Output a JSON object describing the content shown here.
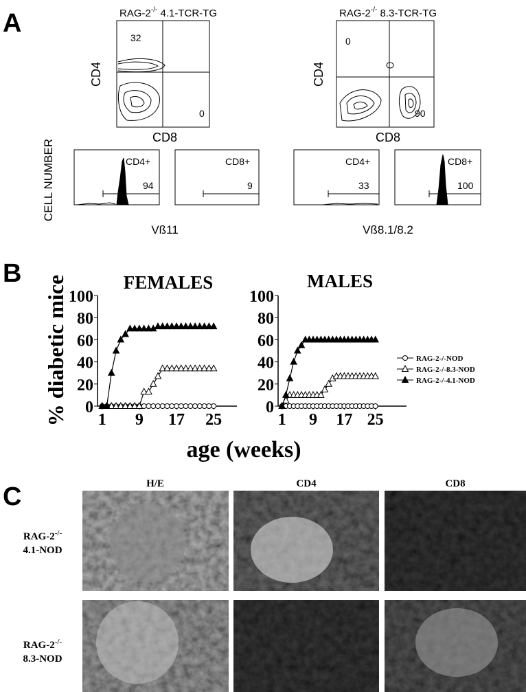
{
  "panel_a": {
    "label": "A",
    "left": {
      "title": {
        "prefix": "RAG-2",
        "sup": "-/-",
        "suffix": " 4.1-TCR-TG"
      },
      "contour": {
        "ylabel": "CD4",
        "xlabel": "CD8",
        "q_upper_left": "32",
        "q_lower_right": "0"
      },
      "hist": [
        {
          "label": "CD4+",
          "value": "94"
        },
        {
          "label": "CD8+",
          "value": "9"
        }
      ],
      "hist_xlabel": "Vß11"
    },
    "right": {
      "title": {
        "prefix": "RAG-2",
        "sup": "-/-",
        "suffix": " 8.3-TCR-TG"
      },
      "contour": {
        "ylabel": "CD4",
        "xlabel": "CD8",
        "q_upper_left": "0",
        "q_lower_right": "90"
      },
      "hist": [
        {
          "label": "CD4+",
          "value": "33"
        },
        {
          "label": "CD8+",
          "value": "100"
        }
      ],
      "hist_xlabel": "Vß8.1/8.2"
    },
    "hist_ylabel": "CELL NUMBER"
  },
  "panel_b": {
    "label": "B",
    "ylabel": "% diabetic mice",
    "xlabel": "age (weeks)"
  },
  "chart_data": [
    {
      "type": "line",
      "title": "FEMALES",
      "x": [
        1,
        2,
        3,
        4,
        5,
        6,
        7,
        8,
        9,
        10,
        11,
        12,
        13,
        14,
        15,
        16,
        17,
        18,
        19,
        20,
        21,
        22,
        23,
        24,
        25
      ],
      "series": [
        {
          "name": "RAG-2-/-NOD",
          "color": "#000000",
          "marker": "circle",
          "filled": false,
          "values": [
            0,
            0,
            0,
            0,
            0,
            0,
            0,
            0,
            0,
            0,
            0,
            0,
            0,
            0,
            0,
            0,
            0,
            0,
            0,
            0,
            0,
            0,
            0,
            0,
            0
          ]
        },
        {
          "name": "RAG-2-/-8.3-NOD",
          "color": "#000000",
          "marker": "triangle",
          "filled": false,
          "values": [
            0,
            0,
            0,
            0,
            0,
            0,
            0,
            0,
            0,
            13,
            13,
            20,
            27,
            34,
            34,
            34,
            34,
            34,
            34,
            34,
            34,
            34,
            34,
            34,
            34
          ]
        },
        {
          "name": "RAG-2-/-4.1-NOD",
          "color": "#000000",
          "marker": "triangle",
          "filled": true,
          "values": [
            0,
            0,
            30,
            50,
            60,
            65,
            70,
            70,
            70,
            70,
            70,
            70,
            72,
            72,
            72,
            72,
            72,
            72,
            72,
            72,
            72,
            72,
            72,
            72,
            72
          ]
        }
      ],
      "xlim": [
        0,
        30
      ],
      "ylim": [
        0,
        100
      ],
      "xticks": [
        1,
        9,
        17,
        25
      ],
      "yticks": [
        0,
        20,
        40,
        60,
        80,
        100
      ]
    },
    {
      "type": "line",
      "title": "MALES",
      "x": [
        1,
        2,
        3,
        4,
        5,
        6,
        7,
        8,
        9,
        10,
        11,
        12,
        13,
        14,
        15,
        16,
        17,
        18,
        19,
        20,
        21,
        22,
        23,
        24,
        25
      ],
      "series": [
        {
          "color": "#000000",
          "marker": "circle",
          "filled": false,
          "values": [
            0,
            0,
            0,
            0,
            0,
            0,
            0,
            0,
            0,
            0,
            0,
            0,
            0,
            0,
            0,
            0,
            0,
            0,
            0,
            0,
            0,
            0,
            0,
            0,
            0
          ]
        },
        {
          "color": "#000000",
          "marker": "triangle",
          "filled": false,
          "values": [
            0,
            5,
            10,
            10,
            10,
            10,
            10,
            10,
            10,
            10,
            10,
            15,
            20,
            25,
            27,
            27,
            27,
            27,
            27,
            27,
            27,
            27,
            27,
            27,
            27
          ]
        },
        {
          "color": "#000000",
          "marker": "triangle",
          "filled": true,
          "values": [
            0,
            10,
            25,
            40,
            50,
            55,
            60,
            60,
            60,
            60,
            60,
            60,
            60,
            60,
            60,
            60,
            60,
            60,
            60,
            60,
            60,
            60,
            60,
            60,
            60
          ]
        }
      ],
      "xlim": [
        0,
        33
      ],
      "ylim": [
        0,
        100
      ],
      "xticks": [
        1,
        9,
        17,
        25
      ],
      "yticks": [
        0,
        20,
        40,
        60,
        80,
        100
      ]
    }
  ],
  "panel_c": {
    "label": "C",
    "columns": [
      "H/E",
      "CD4",
      "CD8"
    ],
    "rows": [
      {
        "prefix": "RAG-2",
        "sup": "-/-",
        "line2": "4.1-NOD"
      },
      {
        "prefix": "RAG-2",
        "sup": "-/-",
        "line2": "8.3-NOD"
      }
    ]
  }
}
